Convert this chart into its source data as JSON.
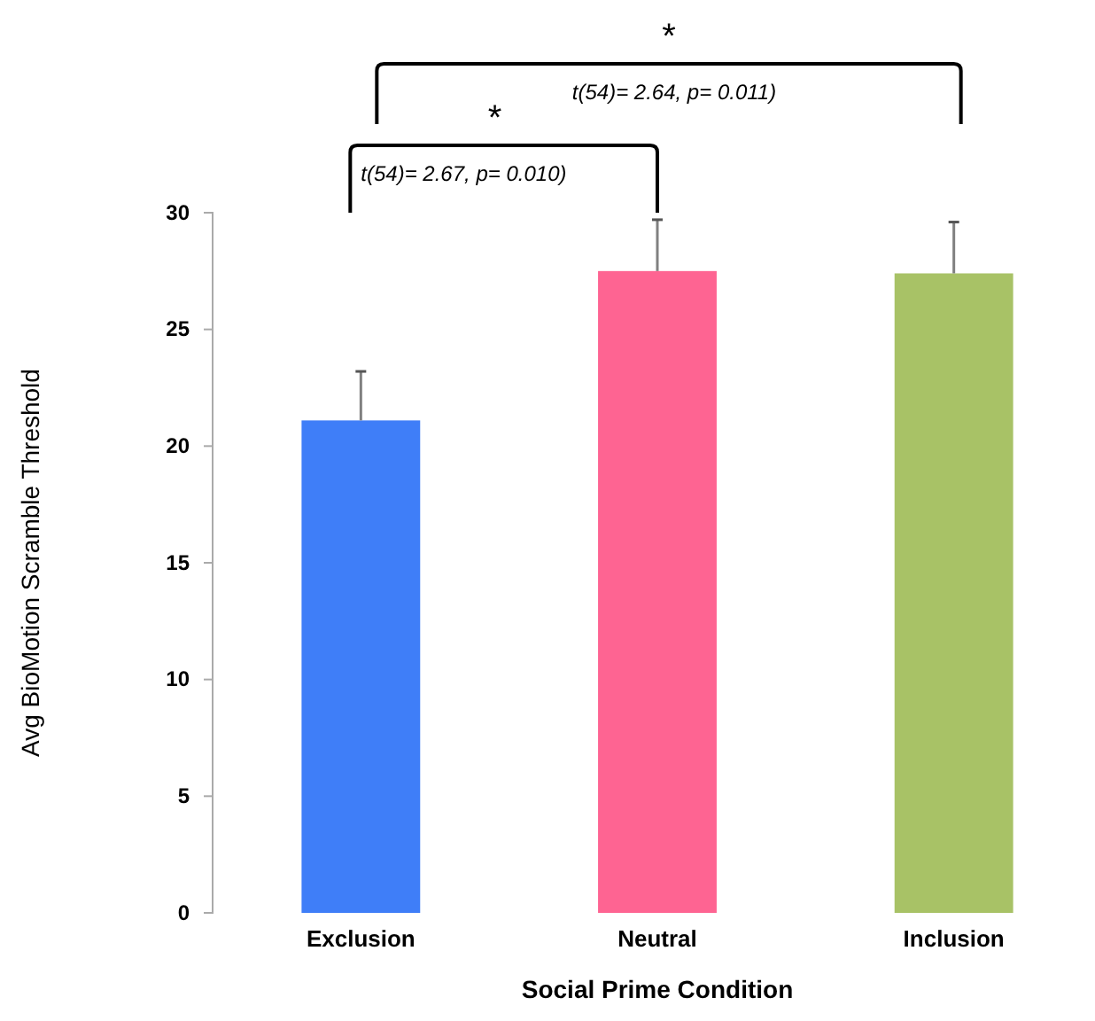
{
  "chart_data": {
    "type": "bar",
    "xlabel": "Social Prime Condition",
    "ylabel": "Avg BioMotion Scramble Threshold",
    "categories": [
      "Exclusion",
      "Neutral",
      "Inclusion"
    ],
    "values": [
      21.1,
      27.5,
      27.4
    ],
    "colors": [
      "#3f7ef8",
      "#fe6492",
      "#a8c266"
    ],
    "errors": [
      2.1,
      2.2,
      2.2
    ],
    "ylim": [
      0,
      30
    ],
    "yticks": [
      0,
      5,
      10,
      15,
      20,
      25,
      30
    ],
    "annotations": [
      "*",
      "t(54)= 2.64, p= 0.011)",
      "*",
      "t(54)= 2.67, p= 0.010)"
    ]
  }
}
